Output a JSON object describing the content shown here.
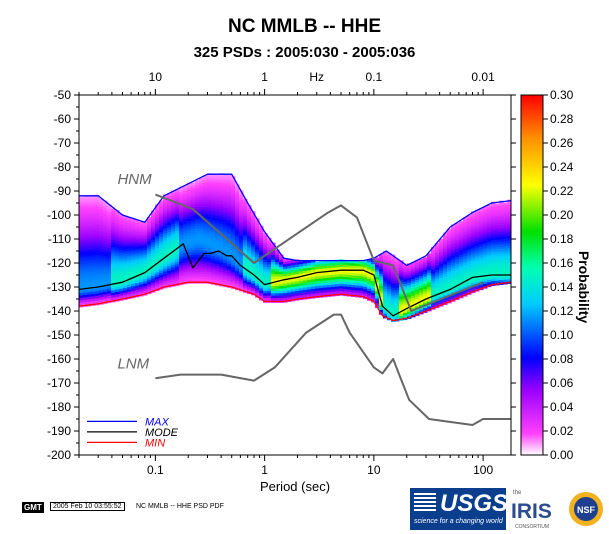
{
  "title": "NC MMLB -- HHE",
  "subtitle": "325 PSDs : 2005:030 - 2005:036",
  "chart_data": {
    "type": "heatmap",
    "title": "NC MMLB -- HHE",
    "subtitle": "325 PSDs : 2005:030 - 2005:036",
    "xlabel": "Period (sec)",
    "top_xlabel": "Hz",
    "ylabel": "",
    "x_scale": "log",
    "xlim": [
      0.02,
      180
    ],
    "ylim": [
      -200,
      -50
    ],
    "x_ticks": [
      0.1,
      1,
      10,
      100
    ],
    "top_ticks": [
      {
        "label": "10",
        "period": 0.1
      },
      {
        "label": "1",
        "period": 1
      },
      {
        "label": "0.1",
        "period": 10
      },
      {
        "label": "0.01",
        "period": 100
      }
    ],
    "y_ticks": [
      -50,
      -60,
      -70,
      -80,
      -90,
      -100,
      -110,
      -120,
      -130,
      -140,
      -150,
      -160,
      -170,
      -180,
      -190,
      -200
    ],
    "colorbar": {
      "label": "Probability",
      "range": [
        0,
        0.3
      ],
      "ticks": [
        "0.00",
        "0.02",
        "0.04",
        "0.06",
        "0.08",
        "0.10",
        "0.12",
        "0.14",
        "0.16",
        "0.18",
        "0.20",
        "0.22",
        "0.24",
        "0.26",
        "0.28",
        "0.30"
      ]
    },
    "series": [
      {
        "name": "MAX",
        "color": "#0000ff",
        "x": [
          0.02,
          0.03,
          0.05,
          0.08,
          0.12,
          0.2,
          0.3,
          0.5,
          0.7,
          1.0,
          1.5,
          2,
          3,
          5,
          8,
          10,
          13,
          20,
          30,
          50,
          80,
          120,
          180
        ],
        "y": [
          -92,
          -92,
          -100,
          -103,
          -92,
          -87,
          -83,
          -83,
          -95,
          -107,
          -118,
          -119,
          -119,
          -119,
          -119,
          -118,
          -115,
          -121,
          -117,
          -105,
          -99,
          -95,
          -94
        ]
      },
      {
        "name": "MODE",
        "color": "#000000",
        "x": [
          0.02,
          0.03,
          0.05,
          0.08,
          0.12,
          0.18,
          0.22,
          0.28,
          0.32,
          0.38,
          0.45,
          0.5,
          0.6,
          0.8,
          1.0,
          1.5,
          2,
          3,
          5,
          8,
          10,
          12,
          15,
          20,
          30,
          50,
          80,
          120,
          180
        ],
        "y": [
          -131,
          -130,
          -128,
          -124,
          -118,
          -112,
          -122,
          -116,
          -116,
          -115,
          -117,
          -117,
          -121,
          -125,
          -129,
          -127,
          -126,
          -124,
          -123,
          -123,
          -125,
          -138,
          -142,
          -139,
          -135,
          -131,
          -126,
          -125,
          -125
        ]
      },
      {
        "name": "MIN",
        "color": "#ff0000",
        "x": [
          0.02,
          0.03,
          0.05,
          0.08,
          0.12,
          0.2,
          0.3,
          0.5,
          0.8,
          1.0,
          1.5,
          2,
          3,
          5,
          8,
          10,
          12,
          15,
          20,
          30,
          50,
          80,
          120,
          180
        ],
        "y": [
          -138,
          -137,
          -135,
          -133,
          -130,
          -128,
          -128,
          -130,
          -133,
          -136,
          -136,
          -135,
          -134,
          -133,
          -134,
          -136,
          -142,
          -144,
          -143,
          -140,
          -136,
          -132,
          -129,
          -128
        ]
      },
      {
        "name": "HNM",
        "color": "#666666",
        "x": [
          0.1,
          0.22,
          0.8,
          3.8,
          5,
          7,
          10,
          15,
          22,
          100
        ],
        "y": [
          -91.5,
          -97.5,
          -120,
          -99,
          -96,
          -101,
          -119,
          -121,
          -140,
          -128
        ]
      },
      {
        "name": "LNM",
        "color": "#666666",
        "x": [
          0.1,
          0.17,
          0.4,
          0.8,
          1.24,
          2.4,
          4.3,
          5,
          6,
          10,
          12,
          15,
          21,
          32,
          80,
          100,
          180
        ],
        "y": [
          -168,
          -166.5,
          -166.5,
          -169,
          -163.5,
          -149,
          -141.5,
          -141.5,
          -149,
          -163.5,
          -166,
          -160,
          -177,
          -185,
          -187.5,
          -185,
          -185
        ]
      }
    ],
    "series_labels": [
      {
        "text": "HNM",
        "x": 0.045,
        "y": -87
      },
      {
        "text": "LNM",
        "x": 0.045,
        "y": -164
      }
    ],
    "density_mode": [
      [
        0.02,
        -131
      ],
      [
        0.03,
        -130
      ],
      [
        0.05,
        -128
      ],
      [
        0.08,
        -124
      ],
      [
        0.12,
        -118
      ],
      [
        0.18,
        -112
      ],
      [
        0.25,
        -110
      ],
      [
        0.32,
        -112
      ],
      [
        0.4,
        -114
      ],
      [
        0.5,
        -117
      ],
      [
        0.6,
        -121
      ],
      [
        0.8,
        -125
      ],
      [
        1.0,
        -129
      ],
      [
        1.5,
        -127
      ],
      [
        2,
        -126
      ],
      [
        3,
        -124
      ],
      [
        5,
        -123
      ],
      [
        8,
        -123
      ],
      [
        10,
        -125
      ],
      [
        12,
        -138
      ],
      [
        15,
        -142
      ],
      [
        20,
        -139
      ],
      [
        30,
        -135
      ],
      [
        50,
        -131
      ],
      [
        80,
        -127
      ],
      [
        120,
        -125
      ],
      [
        180,
        -125
      ]
    ],
    "legend": {
      "position": "bottom-left",
      "entries": [
        "MAX",
        "MODE",
        "MIN"
      ]
    },
    "grid": false
  },
  "footer": {
    "gmt": "GMT",
    "timestamp": "2005 Feb 10 03:55:52",
    "note": "NC MMLB -- HHE PSD PDF"
  },
  "logos": {
    "usgs": "USGS",
    "usgs_tagline": "science for a changing world",
    "iris_pre": "the",
    "iris": "IRIS",
    "iris_sub": "CONSORTIUM",
    "nsf": "NSF"
  }
}
